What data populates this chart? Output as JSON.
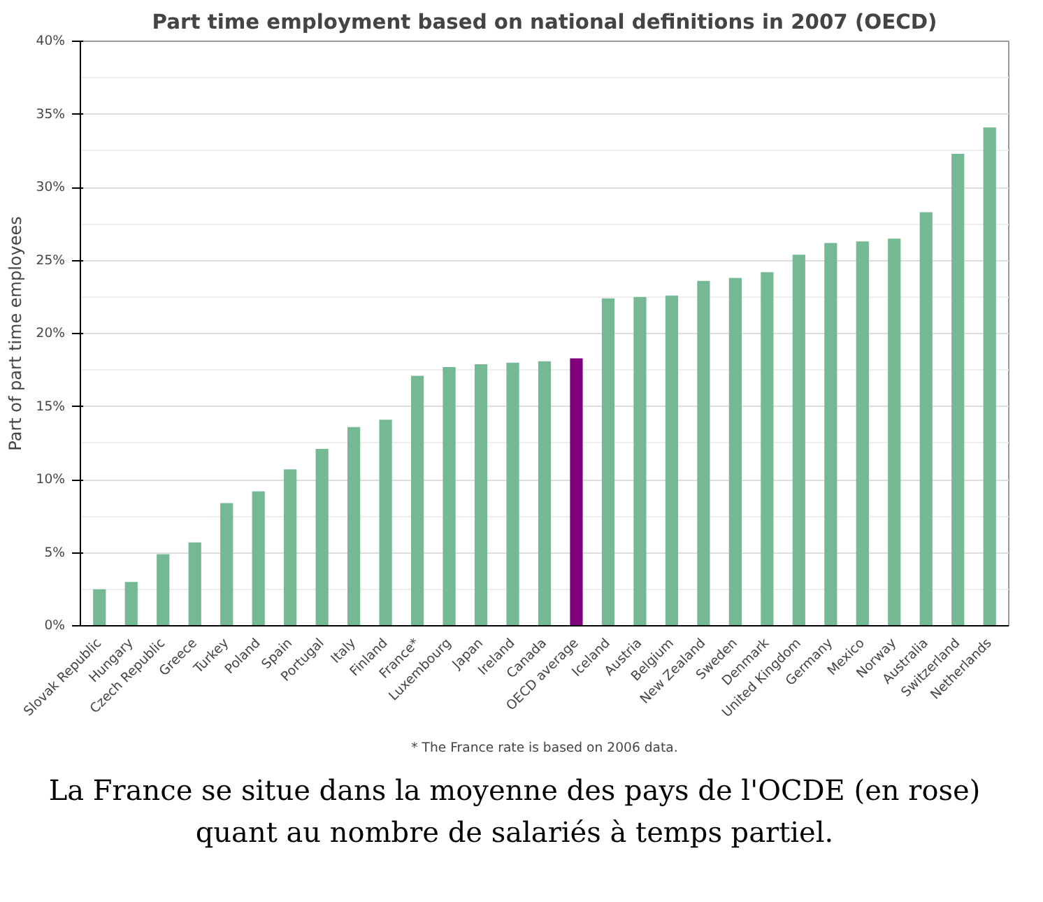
{
  "chart_data": {
    "type": "bar",
    "title": "Part time employment based on national definitions in 2007 (OECD)",
    "ylabel": "Part of part time employees",
    "categories": [
      "Slovak Republic",
      "Hungary",
      "Czech Republic",
      "Greece",
      "Turkey",
      "Poland",
      "Spain",
      "Portugal",
      "Italy",
      "Finland",
      "France*",
      "Luxembourg",
      "Japan",
      "Ireland",
      "Canada",
      "OECD average",
      "Iceland",
      "Austria",
      "Belgium",
      "New Zealand",
      "Sweden",
      "Denmark",
      "United Kingdom",
      "Germany",
      "Mexico",
      "Norway",
      "Australia",
      "Switzerland",
      "Netherlands"
    ],
    "values": [
      2.5,
      3.0,
      4.9,
      5.7,
      8.4,
      9.2,
      10.7,
      12.1,
      13.6,
      14.1,
      17.1,
      17.7,
      17.9,
      18.0,
      18.1,
      18.3,
      22.4,
      22.5,
      22.6,
      23.6,
      23.8,
      24.2,
      25.4,
      26.2,
      26.3,
      26.5,
      28.3,
      32.3,
      34.1
    ],
    "colors": [
      "#74b894",
      "#74b894",
      "#74b894",
      "#74b894",
      "#74b894",
      "#74b894",
      "#74b894",
      "#74b894",
      "#74b894",
      "#74b894",
      "#74b894",
      "#74b894",
      "#74b894",
      "#74b894",
      "#74b894",
      "#800080",
      "#74b894",
      "#74b894",
      "#74b894",
      "#74b894",
      "#74b894",
      "#74b894",
      "#74b894",
      "#74b894",
      "#74b894",
      "#74b894",
      "#74b894",
      "#74b894",
      "#74b894"
    ],
    "ylim": [
      0,
      40
    ],
    "yticks": [
      {
        "value": 0,
        "label": "0%"
      },
      {
        "value": 5,
        "label": "5%"
      },
      {
        "value": 10,
        "label": "10%"
      },
      {
        "value": 15,
        "label": "15%"
      },
      {
        "value": 20,
        "label": "20%"
      },
      {
        "value": 25,
        "label": "25%"
      },
      {
        "value": 30,
        "label": "30%"
      },
      {
        "value": 35,
        "label": "35%"
      },
      {
        "value": 40,
        "label": "40%"
      }
    ],
    "grid": "y",
    "annotations": [
      "* The France rate is based on 2006 data.",
      "La France se situe dans la moyenne des pays de l'OCDE (en rose) quant au nombre de salariés à temps partiel."
    ]
  }
}
